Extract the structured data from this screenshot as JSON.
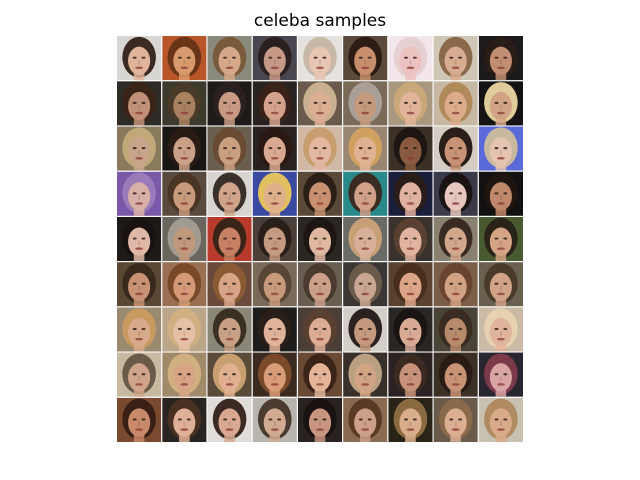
{
  "figure": {
    "title": "celeba samples"
  },
  "grid": {
    "rows": 9,
    "cols": 9,
    "separator_color": "#ffffff",
    "tiles": [
      {
        "bg": "#d8d6d2",
        "hair": "#3a2a22",
        "skin": "#e0b49a"
      },
      {
        "bg": "#b8562a",
        "hair": "#6a3418",
        "skin": "#d89a6c"
      },
      {
        "bg": "#8a8a7c",
        "hair": "#7a5a3c",
        "skin": "#d6a88a"
      },
      {
        "bg": "#4a4650",
        "hair": "#2a2020",
        "skin": "#c69886"
      },
      {
        "bg": "#e6e2e0",
        "hair": "#c8b8a8",
        "skin": "#e8c4b2"
      },
      {
        "bg": "#5a4a3a",
        "hair": "#2c1c14",
        "skin": "#c88e6c"
      },
      {
        "bg": "#f2e6ea",
        "hair": "#e6d0d2",
        "skin": "#ecc2c0"
      },
      {
        "bg": "#cfc6b6",
        "hair": "#8a6a4a",
        "skin": "#d8ac90"
      },
      {
        "bg": "#1c1a1a",
        "hair": "#2a1c16",
        "skin": "#c28e72"
      },
      {
        "bg": "#2e2a26",
        "hair": "#3a2418",
        "skin": "#c09078"
      },
      {
        "bg": "#3c3a2c",
        "hair": "#4a3a28",
        "skin": "#a88260"
      },
      {
        "bg": "#1e1a18",
        "hair": "#2a2020",
        "skin": "#c89a84"
      },
      {
        "bg": "#2a2220",
        "hair": "#3a2218",
        "skin": "#d4a28c"
      },
      {
        "bg": "#6a5a4c",
        "hair": "#c8b090",
        "skin": "#dcae92"
      },
      {
        "bg": "#7a6a58",
        "hair": "#a8a098",
        "skin": "#c49a7c"
      },
      {
        "bg": "#a89880",
        "hair": "#c8a878",
        "skin": "#e0b498"
      },
      {
        "bg": "#c6b8a2",
        "hair": "#b08a5a",
        "skin": "#dcac8c"
      },
      {
        "bg": "#141212",
        "hair": "#e0cc9a",
        "skin": "#d2a486"
      },
      {
        "bg": "#8a7a5c",
        "hair": "#c0a878",
        "skin": "#c8a48a"
      },
      {
        "bg": "#1a1614",
        "hair": "#2a1c14",
        "skin": "#caa088"
      },
      {
        "bg": "#6a5e4e",
        "hair": "#6a4a30",
        "skin": "#c8a080"
      },
      {
        "bg": "#2a2220",
        "hair": "#2a1812",
        "skin": "#d8a890"
      },
      {
        "bg": "#d0b8a4",
        "hair": "#c89e70",
        "skin": "#e4b8a0"
      },
      {
        "bg": "#9a8670",
        "hair": "#d0a060",
        "skin": "#e0b294"
      },
      {
        "bg": "#3a3026",
        "hair": "#1e1612",
        "skin": "#8a5a40"
      },
      {
        "bg": "#d4ccc2",
        "hair": "#2a1e18",
        "skin": "#c89276"
      },
      {
        "bg": "#5a6ad8",
        "hair": "#c8b8a0",
        "skin": "#e4c4b0"
      },
      {
        "bg": "#7a5aa8",
        "hair": "#9a7ab8",
        "skin": "#d8b0a8"
      },
      {
        "bg": "#5a4a3e",
        "hair": "#4a3424",
        "skin": "#c89a7c"
      },
      {
        "bg": "#d8d4d0",
        "hair": "#3a302a",
        "skin": "#d0a48a"
      },
      {
        "bg": "#3a4aa0",
        "hair": "#e0c060",
        "skin": "#e0b08a"
      },
      {
        "bg": "#5a4838",
        "hair": "#2a1e16",
        "skin": "#c89070"
      },
      {
        "bg": "#2a8a8a",
        "hair": "#3a2c22",
        "skin": "#d0a088"
      },
      {
        "bg": "#1a1e3a",
        "hair": "#2a1c18",
        "skin": "#e0b0a0"
      },
      {
        "bg": "#3a3a48",
        "hair": "#1a1414",
        "skin": "#e6c6be"
      },
      {
        "bg": "#121010",
        "hair": "#1e1410",
        "skin": "#c0886a"
      },
      {
        "bg": "#1e1a18",
        "hair": "#1a1210",
        "skin": "#e0b8a8"
      },
      {
        "bg": "#6a665e",
        "hair": "#a09a90",
        "skin": "#c0987c"
      },
      {
        "bg": "#b83a2a",
        "hair": "#3a2418",
        "skin": "#c88064"
      },
      {
        "bg": "#4a4038",
        "hair": "#2a1e18",
        "skin": "#c49a80"
      },
      {
        "bg": "#2a2622",
        "hair": "#1e1612",
        "skin": "#e0b8a2"
      },
      {
        "bg": "#6a6a66",
        "hair": "#c8a078",
        "skin": "#d8b09a"
      },
      {
        "bg": "#3a322c",
        "hair": "#5a4030",
        "skin": "#e0b4a0"
      },
      {
        "bg": "#8a8070",
        "hair": "#3a2c22",
        "skin": "#d2a88c"
      },
      {
        "bg": "#4a5a30",
        "hair": "#2a2418",
        "skin": "#d4a484"
      },
      {
        "bg": "#5a4834",
        "hair": "#3a2a1c",
        "skin": "#c89274"
      },
      {
        "bg": "#9a7054",
        "hair": "#7a4a28",
        "skin": "#d49a78"
      },
      {
        "bg": "#6a4a3a",
        "hair": "#8a5a34",
        "skin": "#d8a488"
      },
      {
        "bg": "#7a6a5a",
        "hair": "#5a4634",
        "skin": "#c89a7c"
      },
      {
        "bg": "#6a5e52",
        "hair": "#4a3a30",
        "skin": "#caa08a"
      },
      {
        "bg": "#3a3634",
        "hair": "#6a5a4a",
        "skin": "#c8a692"
      },
      {
        "bg": "#5a4230",
        "hair": "#4a2e1c",
        "skin": "#dca488"
      },
      {
        "bg": "#7a5e48",
        "hair": "#6a4430",
        "skin": "#d2a284"
      },
      {
        "bg": "#6a6050",
        "hair": "#4a3a2a",
        "skin": "#d0a286"
      },
      {
        "bg": "#9a8a70",
        "hair": "#c89a60",
        "skin": "#d8aa8c"
      },
      {
        "bg": "#bca68a",
        "hair": "#d0b080",
        "skin": "#e6c0a6"
      },
      {
        "bg": "#8a8678",
        "hair": "#3a3024",
        "skin": "#c8a086"
      },
      {
        "bg": "#1e1c1a",
        "hair": "#2a1e18",
        "skin": "#e0b29a"
      },
      {
        "bg": "#4a3e36",
        "hair": "#5a4030",
        "skin": "#dcac94"
      },
      {
        "bg": "#d4cec8",
        "hair": "#2a2220",
        "skin": "#c4987c"
      },
      {
        "bg": "#2a2624",
        "hair": "#1a1412",
        "skin": "#d8aa96"
      },
      {
        "bg": "#4a4438",
        "hair": "#3a2c20",
        "skin": "#b88a6c"
      },
      {
        "bg": "#cabaa6",
        "hair": "#e6d2b0",
        "skin": "#e0b49c"
      },
      {
        "bg": "#c8baa0",
        "hair": "#6a5a48",
        "skin": "#d0a48a"
      },
      {
        "bg": "#a08a6a",
        "hair": "#d0b080",
        "skin": "#d8a486"
      },
      {
        "bg": "#5a4a3a",
        "hair": "#c8a070",
        "skin": "#e0b090"
      },
      {
        "bg": "#3a2a20",
        "hair": "#7a4a2a",
        "skin": "#d89c78"
      },
      {
        "bg": "#6a4a34",
        "hair": "#3a2418",
        "skin": "#e4b498"
      },
      {
        "bg": "#3a302a",
        "hair": "#b8a080",
        "skin": "#d2a486"
      },
      {
        "bg": "#2a2220",
        "hair": "#3a2a22",
        "skin": "#c8927a"
      },
      {
        "bg": "#3a3026",
        "hair": "#2a1c14",
        "skin": "#c89274"
      },
      {
        "bg": "#2a2630",
        "hair": "#7a3a4a",
        "skin": "#d8a4a4"
      },
      {
        "bg": "#7a4a30",
        "hair": "#3a2014",
        "skin": "#c88a6a"
      },
      {
        "bg": "#2a2420",
        "hair": "#4a3020",
        "skin": "#e0b098"
      },
      {
        "bg": "#e0dcd8",
        "hair": "#3a2a22",
        "skin": "#d8a890"
      },
      {
        "bg": "#b8b4ae",
        "hair": "#4a3a30",
        "skin": "#d2aa92"
      },
      {
        "bg": "#2a2220",
        "hair": "#1a1210",
        "skin": "#c89680"
      },
      {
        "bg": "#8a6a50",
        "hair": "#5a3a24",
        "skin": "#cca088"
      },
      {
        "bg": "#2a2418",
        "hair": "#8a6a40",
        "skin": "#d8ae8c"
      },
      {
        "bg": "#6a5a4a",
        "hair": "#8a6a4a",
        "skin": "#dcae92"
      },
      {
        "bg": "#c8c0b0",
        "hair": "#b08a60",
        "skin": "#d8aa8a"
      }
    ]
  }
}
